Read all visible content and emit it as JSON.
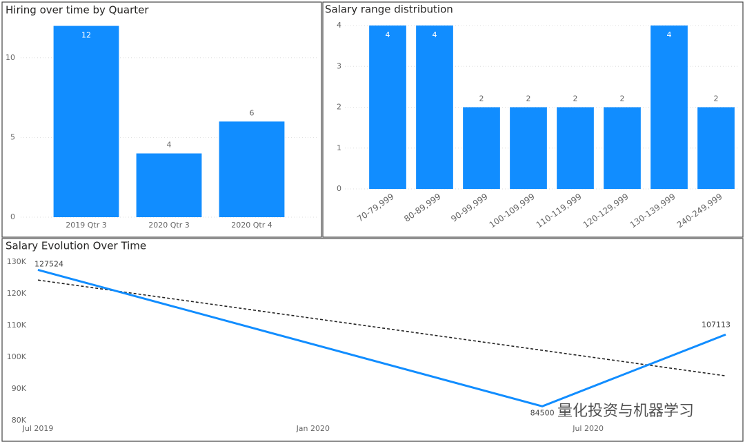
{
  "chart_data": [
    {
      "type": "bar",
      "title": "Hiring over time by Quarter",
      "categories": [
        "2019 Qtr 3",
        "2020 Qtr 3",
        "2020 Qtr 4"
      ],
      "values": [
        12,
        4,
        6
      ],
      "color": "#118dff",
      "ylim": [
        0,
        12.5
      ],
      "yticks": [
        0,
        5,
        10
      ],
      "grid": true
    },
    {
      "type": "bar",
      "title": "Salary range distribution",
      "categories": [
        "70-79,999",
        "80-89,999",
        "90-99,999",
        "100-109,999",
        "110-119,999",
        "120-129,999",
        "130-139,999",
        "240-249,999"
      ],
      "values": [
        4,
        4,
        2,
        2,
        2,
        2,
        4,
        2
      ],
      "color": "#118dff",
      "ylim": [
        0,
        4
      ],
      "yticks": [
        0,
        1,
        2,
        3,
        4
      ],
      "grid": true
    },
    {
      "type": "line",
      "title": "Salary Evolution Over Time",
      "x": [
        "2019-07",
        "2020-06",
        "2020-10"
      ],
      "series": [
        {
          "color": "#118dff",
          "values": [
            127524,
            84500,
            107113
          ]
        }
      ],
      "trendline": [
        124300,
        94100
      ],
      "xlim": [
        "2019-07",
        "2020-10"
      ],
      "xticks": [
        {
          "value": "2019-07",
          "label": "Jul 2019"
        },
        {
          "value": "2020-01",
          "label": "Jan 2020"
        },
        {
          "value": "2020-07",
          "label": "Jul 2020"
        }
      ],
      "ylim": [
        80000,
        130000
      ],
      "yticks": [
        {
          "value": 80000,
          "label": "80K"
        },
        {
          "value": 90000,
          "label": "90K"
        },
        {
          "value": 100000,
          "label": "100K"
        },
        {
          "value": 110000,
          "label": "110K"
        },
        {
          "value": 120000,
          "label": "120K"
        },
        {
          "value": 130000,
          "label": "130K"
        }
      ],
      "grid": false
    }
  ],
  "watermark": "量化投资与机器学习"
}
